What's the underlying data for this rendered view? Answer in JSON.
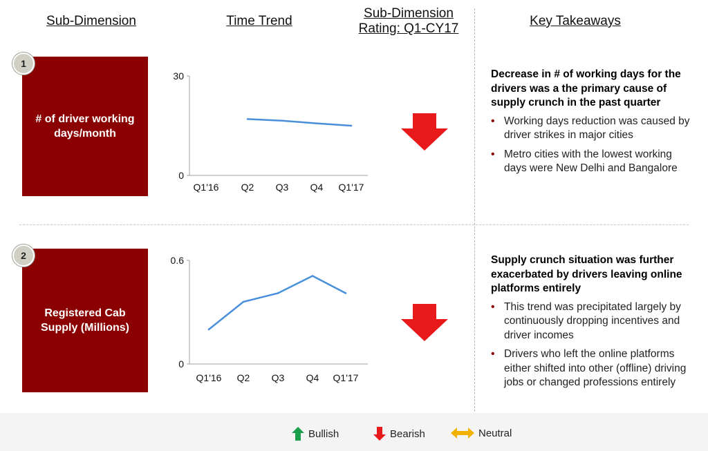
{
  "headers": {
    "sub_dimension": "Sub-Dimension",
    "time_trend": "Time Trend",
    "rating_line1": "Sub-Dimension",
    "rating_line2": "Rating: Q1-CY17",
    "key_takeaways": "Key Takeaways"
  },
  "rows": [
    {
      "number": "1",
      "dimension": "# of driver working days/month",
      "rating": "bearish",
      "takeaway_heading": "Decrease in # of working days for the drivers was a the primary cause of supply crunch in the past quarter",
      "bullets": [
        "Working days reduction was caused by driver strikes in major cities",
        "Metro cities with the lowest working days were New Delhi and Bangalore"
      ]
    },
    {
      "number": "2",
      "dimension": "Registered Cab Supply (Millions)",
      "rating": "bearish",
      "takeaway_heading": "Supply crunch situation was further exacerbated by drivers leaving online platforms entirely",
      "bullets": [
        "This trend was precipitated largely by continuously dropping incentives and driver incomes",
        "Drivers who left the online platforms either shifted into other (offline) driving jobs or changed professions entirely"
      ]
    }
  ],
  "legend": {
    "bullish": "Bullish",
    "bearish": "Bearish",
    "neutral": "Neutral"
  },
  "colors": {
    "dimension_box": "#8b0000",
    "line": "#4a8fdc",
    "bullish": "#1a9e4b",
    "bearish": "#e8191b",
    "neutral": "#f2b100"
  },
  "chart_data": [
    {
      "type": "line",
      "categories": [
        "Q1'16",
        "Q2",
        "Q3",
        "Q4",
        "Q1'17"
      ],
      "values": [
        null,
        17,
        16.5,
        15.7,
        15
      ],
      "ylim": [
        0,
        30
      ],
      "yticks": [
        "0",
        "30"
      ],
      "grid": false
    },
    {
      "type": "line",
      "categories": [
        "Q1'16",
        "Q2",
        "Q3",
        "Q4",
        "Q1'17"
      ],
      "values": [
        0.2,
        0.36,
        0.41,
        0.51,
        0.41
      ],
      "ylim": [
        0,
        0.6
      ],
      "yticks": [
        "0",
        "0.6"
      ],
      "grid": false
    }
  ]
}
